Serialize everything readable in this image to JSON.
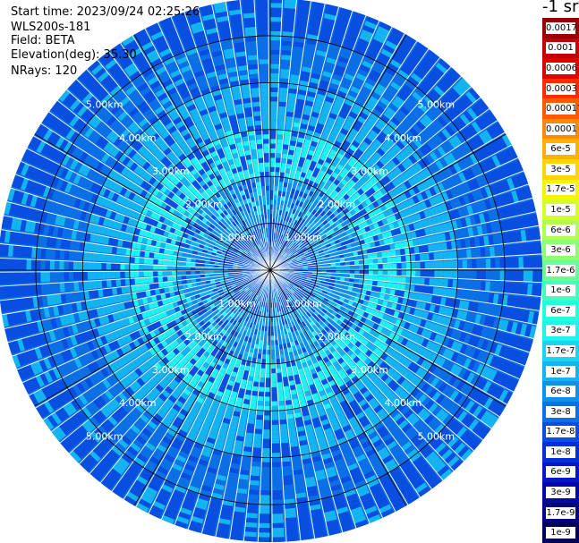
{
  "header": {
    "start_time": "Start time: 2023/09/24 02:25:26",
    "instrument": "WLS200s-181",
    "field": "Field: BETA",
    "elevation": "Elevation(deg): 35.30",
    "nrays": "NRays: 120"
  },
  "colorbar": {
    "units": "-1 sr",
    "steps": [
      {
        "label": "0.0017",
        "color": "#9b0000"
      },
      {
        "label": "0.001",
        "color": "#c40000"
      },
      {
        "label": "0.0006",
        "color": "#e00000"
      },
      {
        "label": "0.0003",
        "color": "#ff2a00"
      },
      {
        "label": "0.00017",
        "color": "#ff5a00"
      },
      {
        "label": "0.0001",
        "color": "#ff8a00"
      },
      {
        "label": "6e-5",
        "color": "#ffb000"
      },
      {
        "label": "3e-5",
        "color": "#ffd400"
      },
      {
        "label": "1.7e-5",
        "color": "#f5f500"
      },
      {
        "label": "1e-5",
        "color": "#d6ff28"
      },
      {
        "label": "6e-6",
        "color": "#b0ff50"
      },
      {
        "label": "3e-6",
        "color": "#8cff73"
      },
      {
        "label": "1.7e-6",
        "color": "#66ff99"
      },
      {
        "label": "1e-6",
        "color": "#44ffbb"
      },
      {
        "label": "6e-7",
        "color": "#22ffdd"
      },
      {
        "label": "3e-7",
        "color": "#1ef3f0"
      },
      {
        "label": "1.7e-7",
        "color": "#17d6f0"
      },
      {
        "label": "1e-7",
        "color": "#14b4f0"
      },
      {
        "label": "6e-8",
        "color": "#0f91ea"
      },
      {
        "label": "3e-8",
        "color": "#0b6fe6"
      },
      {
        "label": "1.7e-8",
        "color": "#084ee0"
      },
      {
        "label": "1e-8",
        "color": "#0530d8"
      },
      {
        "label": "6e-9",
        "color": "#0217c8"
      },
      {
        "label": "3e-9",
        "color": "#0208a8"
      },
      {
        "label": "1.7e-9",
        "color": "#020480"
      },
      {
        "label": "1e-9",
        "color": "#00005a"
      }
    ]
  },
  "chart_data": {
    "type": "heatmap",
    "projection": "polar-ppi",
    "rays": 120,
    "range_rings_km": [
      1.0,
      2.0,
      3.0,
      4.0,
      5.0
    ],
    "range_labels": [
      "1.00km",
      "2.00km",
      "3.00km",
      "4.00km",
      "5.00km"
    ],
    "max_range_km": 5.8,
    "azimuth_spokes_deg": [
      0,
      30,
      60,
      90,
      120,
      150,
      180,
      210,
      240,
      270,
      300,
      330
    ],
    "backscatter_profile": [
      {
        "range_km": 0.5,
        "beta": "1.7e-8"
      },
      {
        "range_km": 1.5,
        "beta": "6e-8"
      },
      {
        "range_km": 2.5,
        "beta": "3e-7"
      },
      {
        "range_km": 3.5,
        "beta": "1e-7"
      },
      {
        "range_km": 4.5,
        "beta": "3e-8"
      },
      {
        "range_km": 5.5,
        "beta": "1.7e-8"
      }
    ],
    "colors": {
      "core": "#0f91ea",
      "inner": "#14b4f0",
      "mid": "#1ef3f0",
      "outer": "#0b6fe6",
      "edge": "#084ee0",
      "rings": "#000000",
      "gaps": "#ffffff"
    }
  }
}
